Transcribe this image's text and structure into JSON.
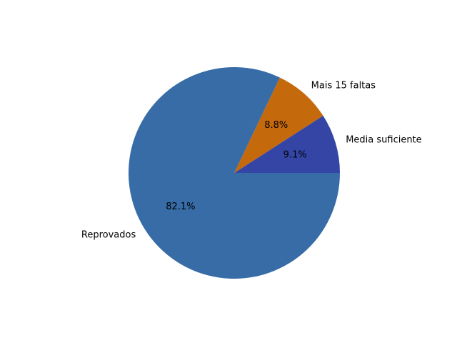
{
  "chart_data": {
    "type": "pie",
    "title": "",
    "start_angle_deg": 0,
    "direction": "counterclockwise",
    "slices": [
      {
        "label": "Media suficiente",
        "value": 9.1,
        "pct_text": "9.1%",
        "color": "#3445a5"
      },
      {
        "label": "Mais 15 faltas",
        "value": 8.8,
        "pct_text": "8.8%",
        "color": "#c5690d"
      },
      {
        "label": "Reprovados",
        "value": 82.1,
        "pct_text": "82.1%",
        "color": "#376ca7"
      }
    ]
  }
}
